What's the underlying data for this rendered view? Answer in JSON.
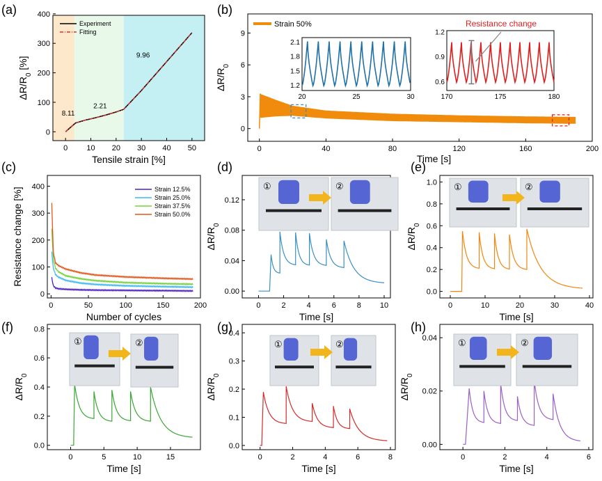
{
  "chart_data": [
    {
      "id": "a",
      "panel_label": "(a)",
      "type": "line",
      "xlabel": "Tensile strain [%]",
      "ylabel": "ΔR/R0 [%]",
      "xlim": [
        -5,
        55
      ],
      "ylim": [
        -30,
        395
      ],
      "xticks": [
        "0",
        "10",
        "20",
        "30",
        "40",
        "50"
      ],
      "yticks": [
        "0",
        "100",
        "200",
        "300",
        "400"
      ],
      "regions": [
        {
          "from": -5,
          "to": 3.5,
          "color": "#fde8cc"
        },
        {
          "from": 3.5,
          "to": 23,
          "color": "#e8f9ea"
        },
        {
          "from": 23,
          "to": 55,
          "color": "#c4f0f4"
        }
      ],
      "series": [
        {
          "name": "Experiment",
          "color": "#000000",
          "dash": false,
          "x": [
            0,
            2,
            4,
            8,
            12,
            16,
            20,
            23,
            30,
            40,
            50
          ],
          "y": [
            0,
            15,
            30,
            40,
            48,
            57,
            67,
            76,
            140,
            238,
            336
          ]
        },
        {
          "name": "Fitting",
          "color": "#e0302a",
          "dash": true,
          "x": [
            0,
            2,
            4,
            8,
            12,
            16,
            20,
            23,
            30,
            40,
            50
          ],
          "y": [
            0,
            15,
            30,
            40,
            48,
            57,
            67,
            76,
            140,
            238,
            336
          ]
        }
      ],
      "annotations": [
        "8.11",
        "2.21",
        "9.96"
      ]
    },
    {
      "id": "b",
      "panel_label": "(b)",
      "type": "line",
      "xlabel": "Time [s]",
      "ylabel": "ΔR/R0",
      "xlim": [
        -7,
        200
      ],
      "ylim": [
        -1.2,
        10.8
      ],
      "xticks": [
        "0",
        "40",
        "80",
        "120",
        "160",
        "200"
      ],
      "yticks": [
        "0",
        "3",
        "6",
        "9"
      ],
      "legend": "Strain 50%",
      "color": "#f08b0c",
      "envelope": {
        "t": [
          0,
          10,
          20,
          40,
          80,
          120,
          160,
          190
        ],
        "upper": [
          3.3,
          2.7,
          2.15,
          1.7,
          1.4,
          1.25,
          1.15,
          1.1
        ],
        "lower": [
          1.0,
          1.15,
          1.2,
          0.95,
          0.7,
          0.6,
          0.5,
          0.45
        ]
      },
      "insets": [
        {
          "xticks": [
            "20",
            "25",
            "30"
          ],
          "yticks": [
            "1.2",
            "1.5",
            "1.8",
            "2.1"
          ],
          "xlim": [
            20,
            30
          ],
          "ylim": [
            1.1,
            2.2
          ],
          "color": "#1f6fa8",
          "cycles": 10,
          "low": 1.2,
          "high": 2.12
        },
        {
          "xticks": [
            "170",
            "175",
            "180"
          ],
          "yticks": [
            "0.6",
            "0.9",
            "1.2"
          ],
          "xlim": [
            170,
            180
          ],
          "ylim": [
            0.5,
            1.22
          ],
          "color": "#e01e1e",
          "cycles": 11,
          "low": 0.6,
          "high": 1.08,
          "annotation": "Resistance change"
        }
      ]
    },
    {
      "id": "c",
      "panel_label": "(c)",
      "type": "line",
      "xlabel": "Number of cycles",
      "ylabel": "Resistance change [%]",
      "xlim": [
        -5,
        200
      ],
      "ylim": [
        -15,
        440
      ],
      "xticks": [
        "0",
        "50",
        "100",
        "150",
        "200"
      ],
      "yticks": [
        "0",
        "100",
        "200",
        "300",
        "400"
      ],
      "series": [
        {
          "name": "Strain 12.5%",
          "color": "#4b1ec8",
          "x": [
            1,
            3,
            6,
            10,
            20,
            40,
            60,
            100,
            150,
            190
          ],
          "y": [
            60,
            30,
            22,
            19,
            17,
            15,
            14,
            13,
            12,
            11
          ]
        },
        {
          "name": "Strain 25.0%",
          "color": "#3fb9f2",
          "x": [
            1,
            3,
            6,
            10,
            20,
            40,
            60,
            100,
            150,
            190
          ],
          "y": [
            155,
            95,
            72,
            62,
            50,
            40,
            35,
            30,
            27,
            25
          ]
        },
        {
          "name": "Strain 37.5%",
          "color": "#76d13c",
          "x": [
            1,
            3,
            6,
            10,
            20,
            40,
            60,
            100,
            150,
            190
          ],
          "y": [
            240,
            130,
            95,
            82,
            67,
            56,
            49,
            42,
            38,
            36
          ]
        },
        {
          "name": "Strain 50.0%",
          "color": "#e2571c",
          "x": [
            1,
            3,
            6,
            10,
            20,
            40,
            60,
            100,
            150,
            190
          ],
          "y": [
            336,
            155,
            115,
            105,
            92,
            78,
            70,
            63,
            58,
            55
          ]
        }
      ]
    },
    {
      "id": "d",
      "panel_label": "(d)",
      "type": "line",
      "xlabel": "Time [s]",
      "ylabel": "ΔR/R0",
      "xlim": [
        -1.3,
        10.5
      ],
      "ylim": [
        -0.009,
        0.152
      ],
      "xticks": [
        "0",
        "2",
        "4",
        "6",
        "8",
        "10"
      ],
      "yticks": [
        "0.00",
        "0.04",
        "0.08",
        "0.12"
      ],
      "color": "#3a8fc2",
      "step_labels": [
        "①",
        "②"
      ],
      "peaks": [
        [
          1.0,
          0.048
        ],
        [
          1.7,
          0.078
        ],
        [
          2.95,
          0.077
        ],
        [
          4.05,
          0.076
        ],
        [
          5.4,
          0.068
        ],
        [
          6.8,
          0.066
        ]
      ],
      "t_start": 0.88,
      "t_end": 10,
      "baseline": 0.0,
      "floor": 0.01
    },
    {
      "id": "e",
      "panel_label": "(e)",
      "type": "line",
      "xlabel": "Time [s]",
      "ylabel": "ΔR/R0",
      "xlim": [
        -3,
        41
      ],
      "ylim": [
        -0.06,
        1.06
      ],
      "xticks": [
        "0",
        "10",
        "20",
        "30",
        "40"
      ],
      "yticks": [
        "0.0",
        "0.2",
        "0.4",
        "0.6",
        "0.8",
        "1.0"
      ],
      "color": "#f2850e",
      "step_labels": [
        "①",
        "②"
      ],
      "peaks": [
        [
          3.5,
          0.55
        ],
        [
          8.3,
          0.54
        ],
        [
          12.7,
          0.53
        ],
        [
          17.0,
          0.52
        ],
        [
          22.0,
          0.57
        ]
      ],
      "t_start": 3.3,
      "t_end": 38,
      "baseline": 0.0,
      "floor": 0.02
    },
    {
      "id": "f",
      "panel_label": "(f)",
      "type": "line",
      "xlabel": "Time [s]",
      "ylabel": "ΔR/R0",
      "xlim": [
        -3.5,
        19.5
      ],
      "ylim": [
        -0.03,
        0.83
      ],
      "xticks": [
        "0",
        "5",
        "10",
        "15"
      ],
      "yticks": [
        "0.0",
        "0.2",
        "0.4",
        "0.6",
        "0.8"
      ],
      "color": "#3aa632",
      "step_labels": [
        "①",
        "②"
      ],
      "peaks": [
        [
          0.6,
          0.42
        ],
        [
          3.5,
          0.37
        ],
        [
          6.2,
          0.38
        ],
        [
          9.0,
          0.37
        ],
        [
          12.0,
          0.4
        ]
      ],
      "t_start": 0.45,
      "t_end": 18.3,
      "baseline": 0.0,
      "floor": 0.05
    },
    {
      "id": "g",
      "panel_label": "(g)",
      "type": "line",
      "xlabel": "Time [s]",
      "ylabel": "ΔR/R0",
      "xlim": [
        -1.1,
        8.3
      ],
      "ylim": [
        -0.015,
        0.43
      ],
      "xticks": [
        "0",
        "2",
        "4",
        "6",
        "8"
      ],
      "yticks": [
        "0.0",
        "0.1",
        "0.2",
        "0.3",
        "0.4"
      ],
      "color": "#d42a2a",
      "step_labels": [
        "①",
        "②"
      ],
      "peaks": [
        [
          0.2,
          0.19
        ],
        [
          1.6,
          0.21
        ],
        [
          3.2,
          0.15
        ],
        [
          4.5,
          0.14
        ],
        [
          5.5,
          0.13
        ]
      ],
      "t_start": 0.1,
      "t_end": 7.8,
      "baseline": 0.0,
      "floor": 0.015
    },
    {
      "id": "h",
      "panel_label": "(h)",
      "type": "line",
      "xlabel": "Time [s]",
      "ylabel": "ΔR/R0",
      "xlim": [
        -1.1,
        6.2
      ],
      "ylim": [
        -0.002,
        0.045
      ],
      "xticks": [
        "0",
        "2",
        "4",
        "6"
      ],
      "yticks": [
        "0.00",
        "0.02",
        "0.04"
      ],
      "color": "#9b5fc8",
      "step_labels": [
        "①",
        "②"
      ],
      "peaks": [
        [
          0.3,
          0.021
        ],
        [
          1.0,
          0.02
        ],
        [
          1.8,
          0.023
        ],
        [
          2.6,
          0.018
        ],
        [
          3.4,
          0.024
        ],
        [
          4.3,
          0.019
        ]
      ],
      "t_start": 0.12,
      "t_end": 5.6,
      "baseline": 0.0,
      "floor": 0.001
    }
  ]
}
